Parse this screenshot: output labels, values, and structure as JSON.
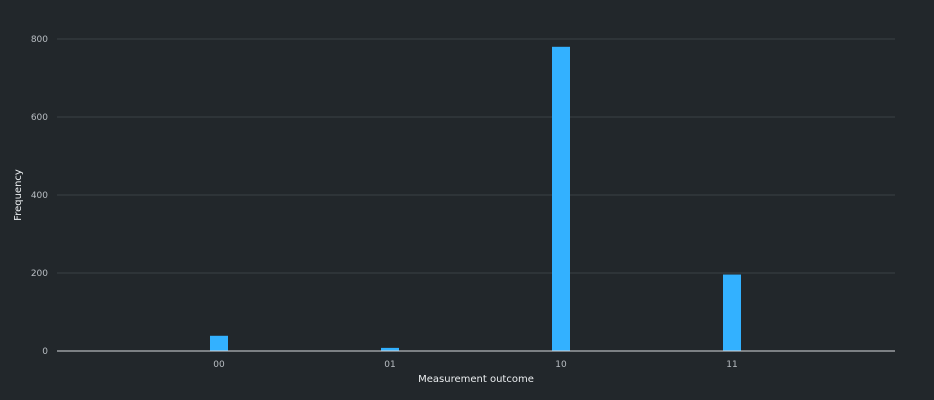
{
  "chart_data": {
    "type": "bar",
    "title": "",
    "xlabel": "Measurement outcome",
    "ylabel": "Frequency",
    "categories": [
      "00",
      "01",
      "10",
      "11"
    ],
    "values": [
      39,
      8,
      780,
      196
    ],
    "ylim": [
      0,
      800
    ],
    "yticks": [
      0,
      200,
      400,
      600,
      800
    ],
    "ytick_labels": [
      "0",
      "200",
      "400",
      "600",
      "800"
    ],
    "grid": true,
    "legend": "none",
    "colors": {
      "background": "#22272b",
      "bar": "#33b1ff",
      "grid": "#3a4046",
      "text": "#b9bec3"
    }
  }
}
